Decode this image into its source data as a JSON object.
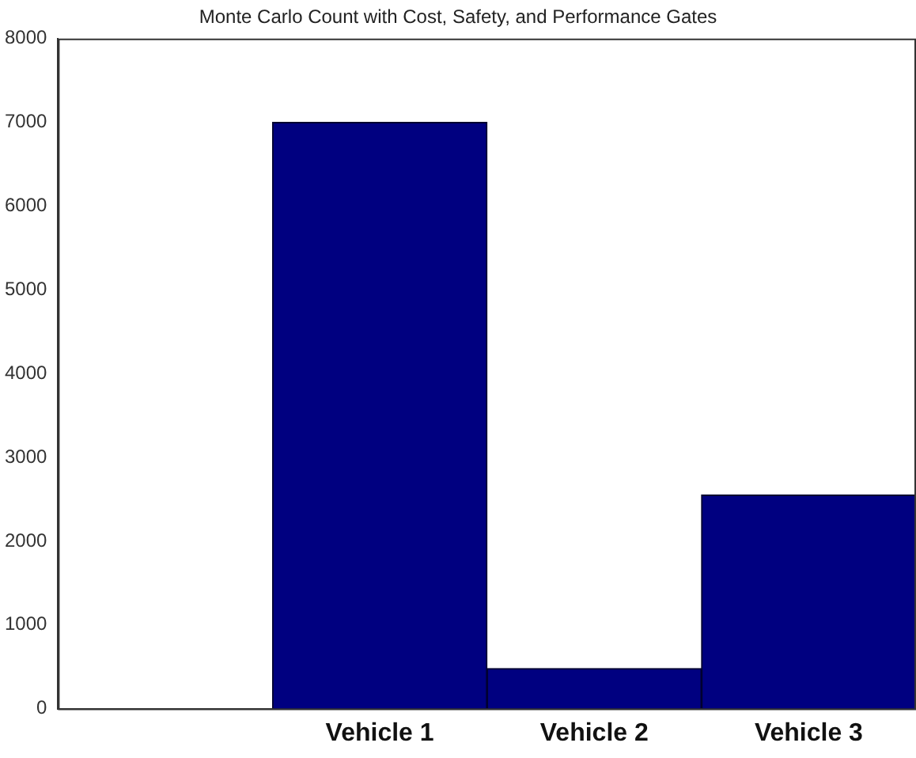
{
  "chart_data": {
    "type": "bar",
    "title": "Monte Carlo Count with Cost, Safety, and Performance Gates",
    "categories": [
      null,
      "Vehicle 1",
      "Vehicle 2",
      "Vehicle 3"
    ],
    "values": [
      null,
      7000,
      480,
      2550
    ],
    "color": "#000080",
    "ylim": [
      0,
      8000
    ],
    "yticks": [
      0,
      1000,
      2000,
      3000,
      4000,
      5000,
      6000,
      7000,
      8000
    ],
    "grid": false
  }
}
